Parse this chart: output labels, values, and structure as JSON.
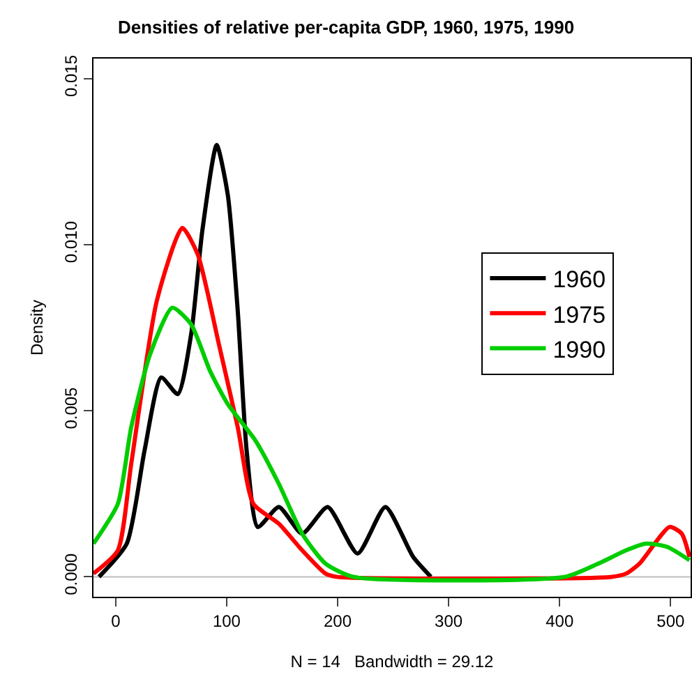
{
  "chart_data": {
    "type": "line",
    "title": "Densities of relative per-capita GDP, 1960, 1975, 1990",
    "xlabel": "N = 14   Bandwidth = 29.12",
    "ylabel": "Density",
    "xlim": [
      -20,
      518
    ],
    "ylim": [
      -0.0006,
      0.0156
    ],
    "xticks": [
      0,
      100,
      200,
      300,
      400,
      500
    ],
    "yticks": [
      {
        "value": 0,
        "label": "0.000"
      },
      {
        "value": 0.005,
        "label": "0.005"
      },
      {
        "value": 0.01,
        "label": "0.010"
      },
      {
        "value": 0.015,
        "label": "0.015"
      }
    ],
    "grid": false,
    "legend": "right",
    "marker": "none",
    "line_style": "solid",
    "ref_lines": [
      {
        "axis": "y",
        "value": 0,
        "color": "#bebebe"
      }
    ],
    "series": [
      {
        "name": "1960",
        "color": "#000000",
        "x": [
          -15,
          10,
          26,
          41,
          56,
          68,
          78,
          91,
          101,
          110,
          118,
          128,
          147,
          168,
          191,
          218,
          243,
          268,
          284
        ],
        "values": [
          0,
          0.001,
          0.0038,
          0.006,
          0.0055,
          0.0073,
          0.0104,
          0.013,
          0.0115,
          0.008,
          0.0038,
          0.0015,
          0.0021,
          0.0013,
          0.0021,
          0.0007,
          0.0021,
          0.0006,
          0
        ]
      },
      {
        "name": "1975",
        "color": "#ff0000",
        "x": [
          -20,
          2,
          14,
          37,
          60,
          74,
          93,
          110,
          124,
          147,
          168,
          189,
          199,
          447,
          460,
          472,
          499,
          510,
          517
        ],
        "values": [
          0.0001,
          0.0008,
          0.0034,
          0.0083,
          0.0105,
          0.0097,
          0.007,
          0.0045,
          0.0022,
          0.0016,
          0.0008,
          0.0001,
          0,
          0,
          0.0001,
          0.0004,
          0.0015,
          0.0013,
          0.0006
        ]
      },
      {
        "name": "1990",
        "color": "#00cd00",
        "x": [
          -20,
          2,
          14,
          31,
          51,
          68,
          85,
          101,
          126,
          147,
          168,
          189,
          214,
          405,
          435,
          460,
          478,
          497,
          517
        ],
        "values": [
          0.001,
          0.0022,
          0.0045,
          0.0067,
          0.0081,
          0.0076,
          0.0062,
          0.0052,
          0.0041,
          0.0028,
          0.0013,
          0.0004,
          0,
          0,
          0.0004,
          0.0008,
          0.001,
          0.0009,
          0.0005
        ]
      }
    ]
  }
}
